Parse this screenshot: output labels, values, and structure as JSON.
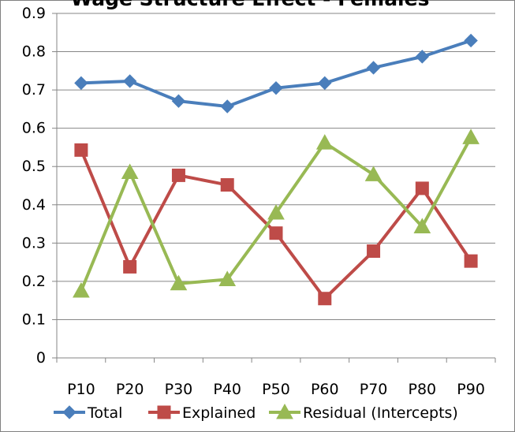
{
  "chart_data": {
    "type": "line",
    "title": "Wage Structure Effect - Females",
    "xlabel": "",
    "ylabel": "",
    "categories": [
      "P10",
      "P20",
      "P30",
      "P40",
      "P50",
      "P60",
      "P70",
      "P80",
      "P90"
    ],
    "ylim": [
      0,
      0.9
    ],
    "yticks": [
      "0",
      "0.1",
      "0.2",
      "0.3",
      "0.4",
      "0.5",
      "0.6",
      "0.7",
      "0.8",
      "0.9"
    ],
    "grid": true,
    "legend_position": "bottom",
    "series": [
      {
        "name": "Total",
        "color": "#4a7ebb",
        "marker": "diamond",
        "values": [
          0.718,
          0.723,
          0.671,
          0.657,
          0.705,
          0.718,
          0.758,
          0.787,
          0.829
        ]
      },
      {
        "name": "Explained",
        "color": "#be4b48",
        "marker": "square",
        "values": [
          0.543,
          0.238,
          0.477,
          0.452,
          0.326,
          0.155,
          0.279,
          0.443,
          0.253
        ]
      },
      {
        "name": "Residual (Intercepts)",
        "color": "#98b954",
        "marker": "triangle",
        "values": [
          0.175,
          0.485,
          0.194,
          0.205,
          0.379,
          0.562,
          0.479,
          0.343,
          0.576
        ]
      }
    ]
  }
}
